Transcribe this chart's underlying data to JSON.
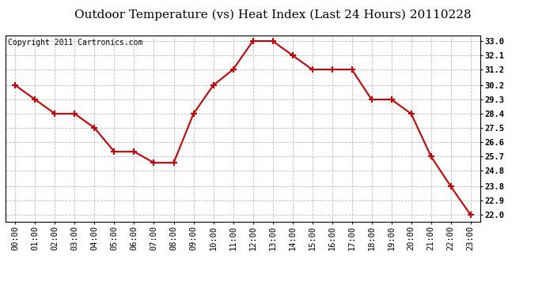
{
  "title": "Outdoor Temperature (vs) Heat Index (Last 24 Hours) 20110228",
  "copyright": "Copyright 2011 Cartronics.com",
  "x_labels": [
    "00:00",
    "01:00",
    "02:00",
    "03:00",
    "04:00",
    "05:00",
    "06:00",
    "07:00",
    "08:00",
    "09:00",
    "10:00",
    "11:00",
    "12:00",
    "13:00",
    "14:00",
    "15:00",
    "16:00",
    "17:00",
    "18:00",
    "19:00",
    "20:00",
    "21:00",
    "22:00",
    "23:00"
  ],
  "y_values": [
    30.2,
    29.3,
    28.4,
    28.4,
    27.5,
    26.0,
    26.0,
    25.3,
    25.3,
    28.4,
    30.2,
    31.2,
    33.0,
    33.0,
    32.1,
    31.2,
    31.2,
    31.2,
    29.3,
    29.3,
    28.4,
    25.7,
    23.8,
    22.0
  ],
  "yticks": [
    22.0,
    22.9,
    23.8,
    24.8,
    25.7,
    26.6,
    27.5,
    28.4,
    29.3,
    30.2,
    31.2,
    32.1,
    33.0
  ],
  "ylim": [
    21.55,
    33.35
  ],
  "xlim": [
    -0.5,
    23.5
  ],
  "line_color": "#cc0000",
  "marker": "+",
  "marker_size": 6,
  "marker_color": "#cc0000",
  "marker_linewidth": 1.5,
  "line_width": 1.5,
  "bg_color": "#ffffff",
  "grid_color": "#bbbbbb",
  "grid_linestyle": "--",
  "grid_linewidth": 0.6,
  "title_fontsize": 11,
  "tick_fontsize": 7.5,
  "copyright_fontsize": 7
}
